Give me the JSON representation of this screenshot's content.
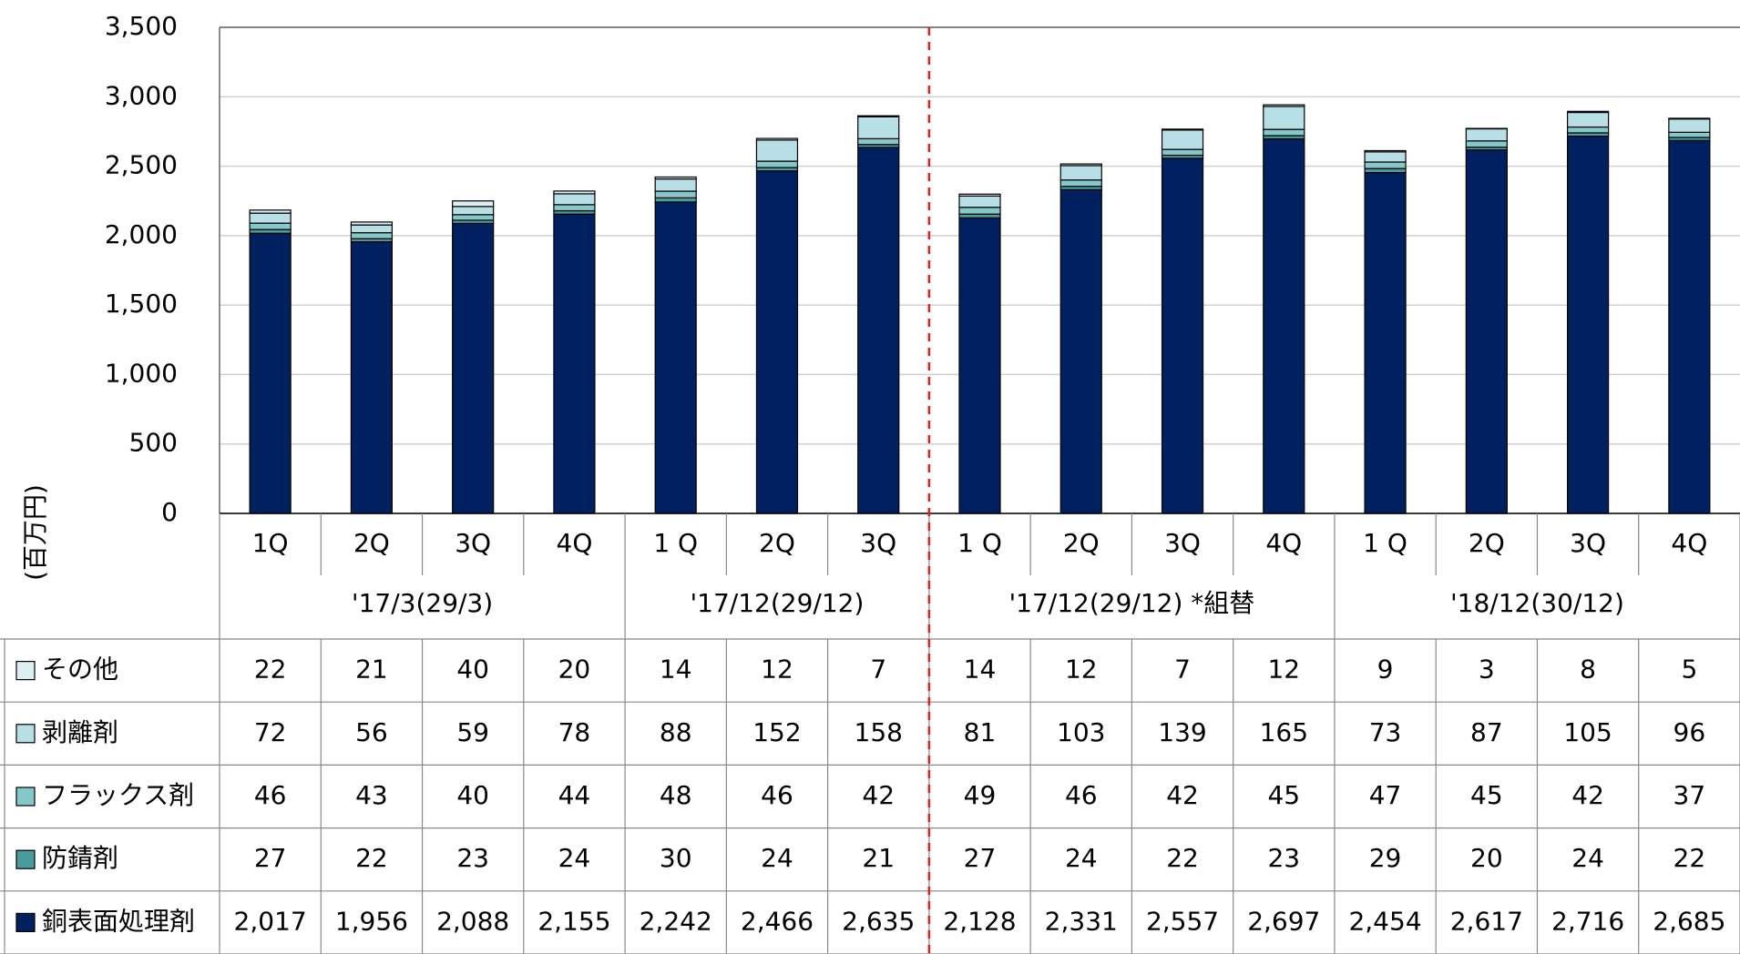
{
  "chart_data": {
    "type": "stacked_bar",
    "y_label": "(百万円)",
    "categories": [
      "1Q",
      "2Q",
      "3Q",
      "4Q",
      "1 Q",
      "2Q",
      "3Q",
      "1 Q",
      "2Q",
      "3Q",
      "4Q",
      "1 Q",
      "2Q",
      "3Q",
      "4Q"
    ],
    "groups": [
      {
        "label": "'17/3(29/3)",
        "span": 4
      },
      {
        "label": "'17/12(29/12)",
        "span": 3
      },
      {
        "label": "'17/12(29/12) *組替",
        "span": 4
      },
      {
        "label": "'18/12(30/12)",
        "span": 4
      }
    ],
    "series": [
      {
        "name": "銅表面処理剤",
        "color": "#002060",
        "values": [
          2017,
          1956,
          2088,
          2155,
          2242,
          2466,
          2635,
          2128,
          2331,
          2557,
          2697,
          2454,
          2617,
          2716,
          2685
        ],
        "value_labels": [
          "2,017",
          "1,956",
          "2,088",
          "2,155",
          "2,242",
          "2,466",
          "2,635",
          "2,128",
          "2,331",
          "2,557",
          "2,697",
          "2,454",
          "2,617",
          "2,716",
          "2,685"
        ]
      },
      {
        "name": "防錆剤",
        "color": "#4a9b9e",
        "values": [
          27,
          22,
          23,
          24,
          30,
          24,
          21,
          27,
          24,
          22,
          23,
          29,
          20,
          24,
          22
        ]
      },
      {
        "name": "フラックス剤",
        "color": "#86c7ca",
        "values": [
          46,
          43,
          40,
          44,
          48,
          46,
          42,
          49,
          46,
          42,
          45,
          47,
          45,
          42,
          37
        ]
      },
      {
        "name": "剥離剤",
        "color": "#b9dfe6",
        "values": [
          72,
          56,
          59,
          78,
          88,
          152,
          158,
          81,
          103,
          139,
          165,
          73,
          87,
          105,
          96
        ]
      },
      {
        "name": "その他",
        "color": "#dcf0f3",
        "values": [
          22,
          21,
          40,
          20,
          14,
          12,
          7,
          14,
          12,
          7,
          12,
          9,
          3,
          8,
          5
        ]
      }
    ],
    "ylim": [
      0,
      3500
    ],
    "yticks": [
      0,
      500,
      {
        "value": 1000,
        "label": "1,000"
      },
      {
        "value": 1500,
        "label": "1,500"
      },
      {
        "value": 2000,
        "label": "2,000"
      },
      {
        "value": 2500,
        "label": "2,500"
      },
      {
        "value": 3000,
        "label": "3,000"
      },
      {
        "value": 3500,
        "label": "3,500"
      }
    ],
    "grid": true
  }
}
